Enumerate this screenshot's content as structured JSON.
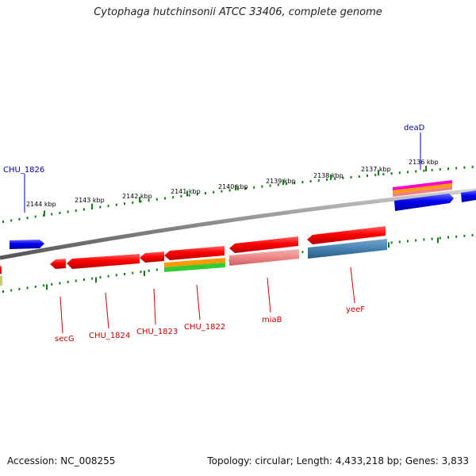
{
  "header": {
    "title": "Cytophaga hutchinsonii ATCC 33406, complete genome"
  },
  "footer": {
    "accession": "Accession: NC_008255",
    "topology": "Topology: circular; Length: 4,433,218 bp; Genes: 3,833"
  },
  "ruler": {
    "ticks": [
      "2144 kbp",
      "2143 kbp",
      "2142 kbp",
      "2141 kbp",
      "2140 kbp",
      "2139 kbp",
      "2138 kbp",
      "2137 kbp",
      "2136 kbp"
    ]
  },
  "labels": {
    "top": [
      "deaD",
      "CHU_1826"
    ],
    "bottom": [
      "secG",
      "CHU_1824",
      "CHU_1823",
      "CHU_1822",
      "miaB",
      "yeeF"
    ]
  },
  "colors": {
    "backbone": "#808080",
    "tick": "#1a7a1a",
    "forward_gene": "#0000ee",
    "reverse_gene": "#ee0000",
    "label_top": "#0000aa",
    "label_bottom": "#cc0000"
  }
}
